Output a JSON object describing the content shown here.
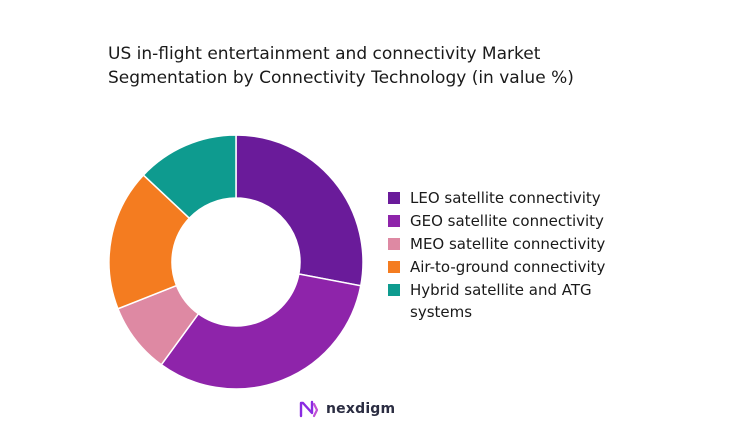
{
  "chart_data": {
    "type": "pie",
    "variant": "donut",
    "title_lines": [
      "US in-flight entertainment and connectivity Market",
      "Segmentation by Connectivity Technology (in value %)"
    ],
    "legend_position": "right",
    "categories": [
      "LEO satellite connectivity",
      "GEO satellite connectivity",
      "MEO satellite connectivity",
      "Air-to-ground connectivity",
      "Hybrid satellite and ATG systems"
    ],
    "values": [
      28,
      32,
      9,
      18,
      13
    ],
    "colors": [
      "#6a1b9a",
      "#8e24aa",
      "#de89a3",
      "#f47c20",
      "#0e9b8f"
    ]
  },
  "brand": {
    "name": "nexdigm",
    "icon": "nexdigm-logo-icon",
    "color": "#8a2be2"
  }
}
